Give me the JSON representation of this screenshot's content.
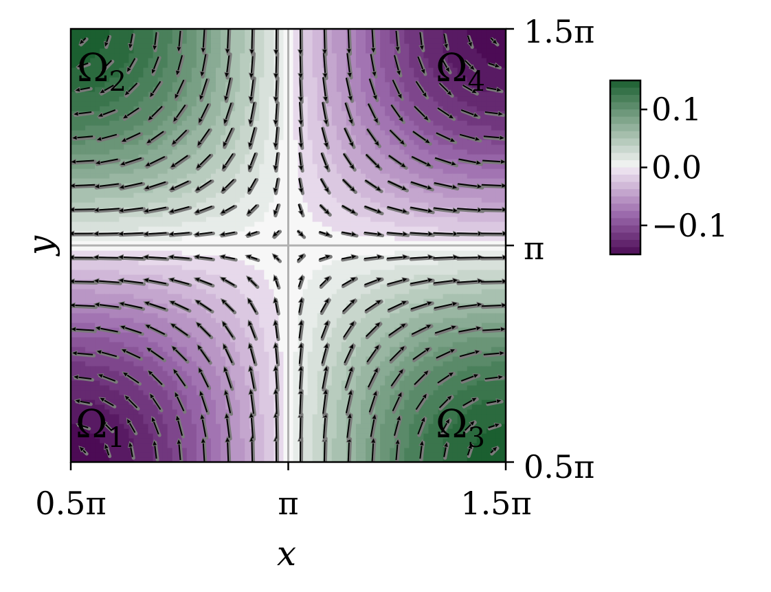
{
  "chart_data": {
    "type": "heatmap",
    "subtype": "filled contour with quiver overlay",
    "field": "-0.15 * sin(x) * sin(y)",
    "xlabel": "x",
    "ylabel": "y",
    "xlim": [
      "0.5π",
      "1.5π"
    ],
    "ylim": [
      "0.5π",
      "1.5π"
    ],
    "x_ticks": [
      "0.5π",
      "π",
      "1.5π"
    ],
    "y_ticks": [
      "0.5π",
      "π",
      "1.5π"
    ],
    "y_tick_side": "right",
    "gridlines": [
      "x = π",
      "y = π"
    ],
    "colormap": "PRGn",
    "colorbar": {
      "ticks": [
        0.1,
        0.0,
        -0.1
      ],
      "tick_labels": [
        "0.1",
        "0.0",
        "−0.1"
      ],
      "range": [
        -0.15,
        0.15
      ],
      "placement": "right"
    },
    "min_value": -0.15,
    "center": [
      "π",
      "π"
    ],
    "vectors": "counter-clockwise circulation around (π, π)",
    "regions": [
      {
        "name": "Ω1",
        "label": "Ω",
        "sub": "1",
        "corner": "bottom-left"
      },
      {
        "name": "Ω2",
        "label": "Ω",
        "sub": "2",
        "corner": "top-left"
      },
      {
        "name": "Ω3",
        "label": "Ω",
        "sub": "3",
        "corner": "bottom-right"
      },
      {
        "name": "Ω4",
        "label": "Ω",
        "sub": "4",
        "corner": "top-right"
      }
    ],
    "colors": {
      "deep_purple": "#4c0b55",
      "light_purple": "#f2eaf4",
      "neutral": "#f7f7f7",
      "green": "#1b5f30",
      "grid": "#b0b0b0",
      "arrow_black": "#000000",
      "arrow_gray": "#7a7a7a"
    }
  }
}
